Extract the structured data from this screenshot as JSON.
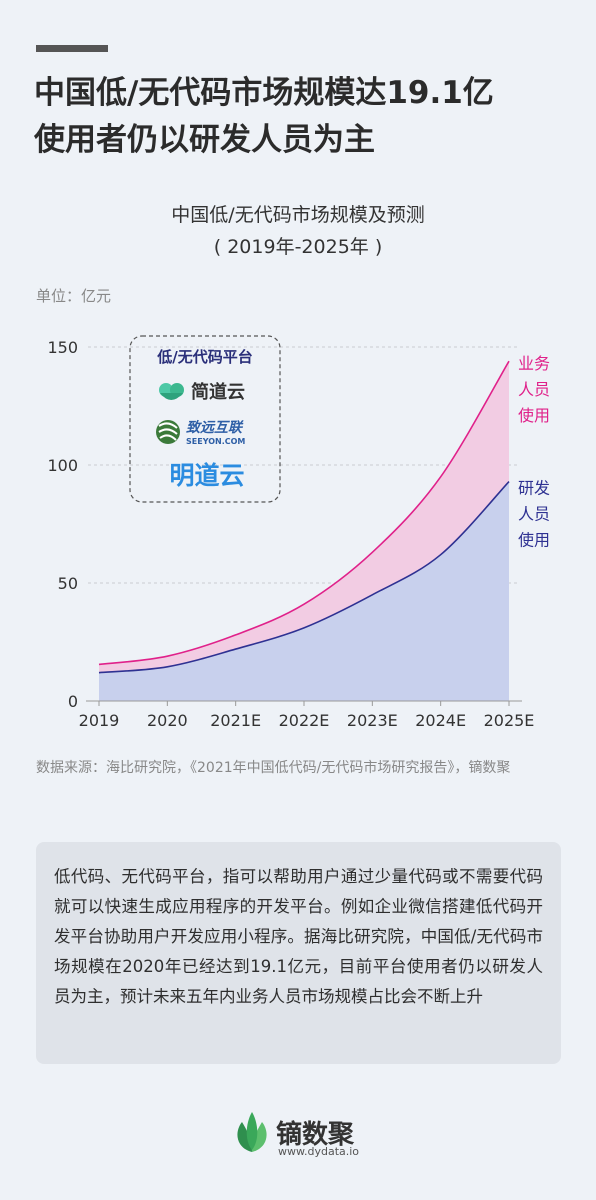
{
  "headline": {
    "line1": "中国低/无代码市场规模达19.1亿",
    "line2": "使用者仍以研发人员为主"
  },
  "chart_title": {
    "line1": "中国低/无代码市场规模及预测",
    "line2": "( 2019年-2025年 )"
  },
  "unit_label": "单位：亿元",
  "platform_box": {
    "title": "低/无代码平台",
    "brands": [
      "简道云",
      "致远互联",
      "SEEYON.COM",
      "明道云"
    ]
  },
  "chart_data": {
    "type": "area",
    "categories": [
      "2019",
      "2020",
      "2021E",
      "2022E",
      "2023E",
      "2024E",
      "2025E"
    ],
    "ylim": [
      0,
      150
    ],
    "yticks": [
      0,
      50,
      100,
      150
    ],
    "series": [
      {
        "name": "研发人员使用",
        "label_lines": [
          "研发",
          "人员",
          "使用"
        ],
        "color": "#2e3192",
        "fill": "#c8d0ed",
        "values": [
          12,
          14.5,
          22,
          31,
          45,
          62,
          93
        ]
      },
      {
        "name": "业务人员使用",
        "label_lines": [
          "业务",
          "人员",
          "使用"
        ],
        "color": "#e0218a",
        "fill": "#f2cce3",
        "values": [
          15.5,
          19,
          28,
          41,
          63,
          95,
          144
        ]
      }
    ]
  },
  "source": "数据来源：海比研究院，《2021年中国低代码/无代码市场研究报告》，镝数聚",
  "description": "低代码、无代码平台，指可以帮助用户通过少量代码或不需要代码就可以快速生成应用程序的开发平台。例如企业微信搭建低代码开发平台协助用户开发应用小程序。据海比研究院，中国低/无代码市场规模在2020年已经达到19.1亿元，目前平台使用者仍以研发人员为主，预计未来五年内业务人员市场规模占比会不断上升",
  "footer": {
    "brand": "镝数聚",
    "url": "www.dydata.io"
  }
}
